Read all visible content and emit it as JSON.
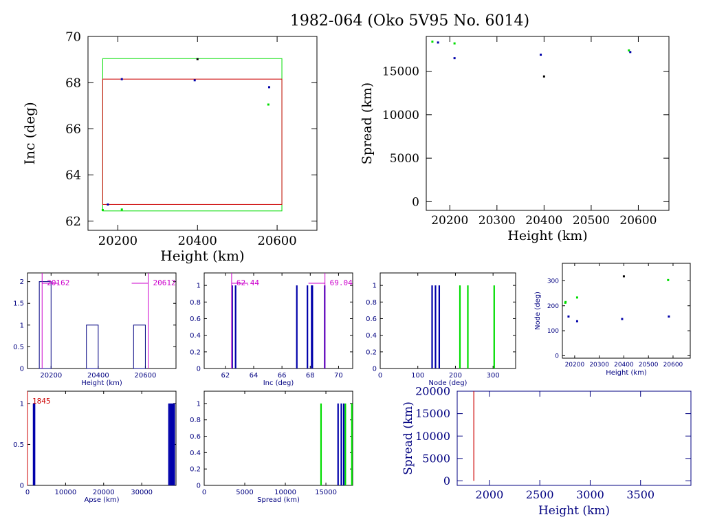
{
  "title": "1982-064 (Oko 5V95 No. 6014)",
  "colors": {
    "axis": "#000000",
    "blue": "#0000aa",
    "navy": "#000080",
    "green": "#00dd00",
    "red": "#cc0000",
    "magenta": "#cc00cc",
    "black": "#000000"
  },
  "chart_data": [
    {
      "id": "inc_height",
      "type": "scatter",
      "xlabel": "Height (km)",
      "ylabel": "Inc (deg)",
      "xlim": [
        20125,
        20700
      ],
      "ylim": [
        61.6,
        70
      ],
      "xticks": [
        20200,
        20400,
        20600
      ],
      "yticks": [
        62,
        64,
        66,
        68,
        70
      ],
      "boxes": [
        {
          "name": "",
          "color": "#00dd00",
          "x": [
            20162,
            20612
          ],
          "y": [
            62.44,
            69.04
          ]
        },
        {
          "name": "",
          "color": "#cc0000",
          "x": [
            20162,
            20612
          ],
          "y": [
            62.72,
            68.15
          ]
        }
      ],
      "points": [
        {
          "x": 20162,
          "y": 62.48,
          "color": "#00dd00"
        },
        {
          "x": 20175,
          "y": 62.72,
          "color": "#0000aa"
        },
        {
          "x": 20210,
          "y": 62.5,
          "color": "#00dd00"
        },
        {
          "x": 20210,
          "y": 68.15,
          "color": "#0000aa"
        },
        {
          "x": 20393,
          "y": 68.1,
          "color": "#0000aa"
        },
        {
          "x": 20400,
          "y": 69.02,
          "color": "#000000"
        },
        {
          "x": 20580,
          "y": 67.8,
          "color": "#0000aa"
        },
        {
          "x": 20578,
          "y": 67.05,
          "color": "#00dd00"
        }
      ]
    },
    {
      "id": "spread_height",
      "type": "scatter",
      "xlabel": "Height (km)",
      "ylabel": "Spread (km)",
      "xlim": [
        20150,
        20665
      ],
      "ylim": [
        -1000,
        19000
      ],
      "xticks": [
        20200,
        20300,
        20400,
        20500,
        20600
      ],
      "yticks": [
        0,
        5000,
        10000,
        15000
      ],
      "points": [
        {
          "x": 20163,
          "y": 18400,
          "color": "#00dd00"
        },
        {
          "x": 20175,
          "y": 18300,
          "color": "#0000aa"
        },
        {
          "x": 20210,
          "y": 18200,
          "color": "#00dd00"
        },
        {
          "x": 20210,
          "y": 16500,
          "color": "#0000aa"
        },
        {
          "x": 20393,
          "y": 16900,
          "color": "#0000aa"
        },
        {
          "x": 20400,
          "y": 14400,
          "color": "#000000"
        },
        {
          "x": 20580,
          "y": 17400,
          "color": "#00dd00"
        },
        {
          "x": 20583,
          "y": 17200,
          "color": "#0000aa"
        }
      ]
    },
    {
      "id": "hist_height",
      "type": "bar",
      "xlabel": "Height (km)",
      "ylabel": "",
      "xlim": [
        20100,
        20730
      ],
      "ylim": [
        0,
        2.2
      ],
      "xticks": [
        20200,
        20400,
        20600
      ],
      "yticks": [
        0,
        0.5,
        1,
        1.5,
        2
      ],
      "ytick_labels": [
        "0",
        "0.5",
        "1",
        "1.5",
        "2"
      ],
      "bins": [
        {
          "x0": 20150,
          "x1": 20200,
          "count": 2
        },
        {
          "x0": 20350,
          "x1": 20400,
          "count": 1
        },
        {
          "x0": 20550,
          "x1": 20600,
          "count": 1
        }
      ],
      "markers": [
        {
          "x": 20162,
          "label": "20162"
        },
        {
          "x": 20612,
          "label": "20612"
        }
      ]
    },
    {
      "id": "hist_inc",
      "type": "bar",
      "xlabel": "Inc (deg)",
      "ylabel": "",
      "xlim": [
        60.5,
        71
      ],
      "ylim": [
        0,
        1.15
      ],
      "xticks": [
        62,
        64,
        66,
        68,
        70
      ],
      "yticks": [
        0,
        0.2,
        0.4,
        0.6,
        0.8,
        1
      ],
      "ytick_labels": [
        "0",
        "0.2",
        "0.4",
        "0.6",
        "0.8",
        "1"
      ],
      "lines": [
        {
          "x": 62.48,
          "h": 1,
          "color": "#0000aa"
        },
        {
          "x": 62.72,
          "h": 1,
          "color": "#0000aa"
        },
        {
          "x": 67.05,
          "h": 1,
          "color": "#0000aa"
        },
        {
          "x": 67.8,
          "h": 1,
          "color": "#0000aa"
        },
        {
          "x": 68.1,
          "h": 1,
          "color": "#0000aa"
        },
        {
          "x": 68.15,
          "h": 1,
          "color": "#0000aa"
        },
        {
          "x": 69.02,
          "h": 1,
          "color": "#0000aa"
        }
      ],
      "markers": [
        {
          "x": 62.44,
          "label": "62.44"
        },
        {
          "x": 69.04,
          "label": "69.04"
        }
      ]
    },
    {
      "id": "hist_node",
      "type": "bar",
      "xlabel": "Node (deg)",
      "ylabel": "",
      "xlim": [
        0,
        360
      ],
      "ylim": [
        0,
        1.15
      ],
      "xticks": [
        0,
        100,
        200,
        300
      ],
      "yticks": [
        0,
        0.2,
        0.4,
        0.6,
        0.8,
        1
      ],
      "ytick_labels": [
        "0",
        "0.2",
        "0.4",
        "0.6",
        "0.8",
        "1"
      ],
      "lines": [
        {
          "x": 138,
          "h": 1,
          "color": "#0000aa"
        },
        {
          "x": 147,
          "h": 1,
          "color": "#0000aa"
        },
        {
          "x": 157,
          "h": 1,
          "color": "#0000aa"
        },
        {
          "x": 212,
          "h": 1,
          "color": "#00dd00"
        },
        {
          "x": 233,
          "h": 1,
          "color": "#00dd00"
        },
        {
          "x": 303,
          "h": 1,
          "color": "#00dd00"
        }
      ]
    },
    {
      "id": "node_height",
      "type": "scatter",
      "xlabel": "Height (km)",
      "ylabel": "Node (deg)",
      "xlim": [
        20150,
        20670
      ],
      "ylim": [
        -10,
        370
      ],
      "xticks": [
        20200,
        20300,
        20400,
        20500,
        20600
      ],
      "xtick_labels": [
        "20200",
        "20300",
        "20400",
        "20500",
        "20600"
      ],
      "yticks": [
        0,
        100,
        200,
        300
      ],
      "points": [
        {
          "x": 20162,
          "y": 212,
          "color": "#00dd00"
        },
        {
          "x": 20163,
          "y": 215,
          "color": "#00dd00"
        },
        {
          "x": 20175,
          "y": 157,
          "color": "#0000aa"
        },
        {
          "x": 20210,
          "y": 233,
          "color": "#00dd00"
        },
        {
          "x": 20210,
          "y": 138,
          "color": "#0000aa"
        },
        {
          "x": 20393,
          "y": 147,
          "color": "#0000aa"
        },
        {
          "x": 20400,
          "y": 318,
          "color": "#000000"
        },
        {
          "x": 20580,
          "y": 303,
          "color": "#00dd00"
        },
        {
          "x": 20583,
          "y": 157,
          "color": "#0000aa"
        }
      ]
    },
    {
      "id": "hist_apse",
      "type": "bar",
      "xlabel": "Apse (km)",
      "ylabel": "",
      "xlim": [
        0,
        39000
      ],
      "ylim": [
        0,
        1.15
      ],
      "xticks": [
        0,
        10000,
        20000,
        30000
      ],
      "yticks": [
        0,
        0.5,
        1
      ],
      "ytick_labels": [
        "0",
        "0.5",
        "1"
      ],
      "lines": [
        {
          "x": 1600,
          "h": 1,
          "color": "#0000aa"
        },
        {
          "x": 1850,
          "h": 1,
          "color": "#0000aa"
        },
        {
          "x": 37150,
          "h": 1,
          "color": "#0000aa"
        },
        {
          "x": 37500,
          "h": 1,
          "color": "#0000aa"
        },
        {
          "x": 37850,
          "h": 1,
          "color": "#0000aa"
        },
        {
          "x": 38200,
          "h": 1,
          "color": "#0000aa"
        },
        {
          "x": 38550,
          "h": 1,
          "color": "#0000aa"
        }
      ],
      "markers": [
        {
          "x": 0,
          "label": "1845",
          "color": "#cc0000"
        }
      ]
    },
    {
      "id": "hist_spread",
      "type": "bar",
      "xlabel": "Spread (km)",
      "ylabel": "",
      "xlim": [
        0,
        18300
      ],
      "ylim": [
        0,
        1.15
      ],
      "xticks": [
        0,
        5000,
        10000,
        15000
      ],
      "yticks": [
        0,
        0.2,
        0.4,
        0.6,
        0.8,
        1
      ],
      "ytick_labels": [
        "0",
        "0.2",
        "0.4",
        "0.6",
        "0.8",
        "1"
      ],
      "lines": [
        {
          "x": 14400,
          "h": 1,
          "color": "#00dd00"
        },
        {
          "x": 16500,
          "h": 1,
          "color": "#0000aa"
        },
        {
          "x": 16900,
          "h": 1,
          "color": "#0000aa"
        },
        {
          "x": 17200,
          "h": 1,
          "color": "#0000aa"
        },
        {
          "x": 17400,
          "h": 1,
          "color": "#00dd00"
        },
        {
          "x": 18200,
          "h": 1,
          "color": "#00dd00"
        }
      ]
    },
    {
      "id": "spread_height_low",
      "type": "scatter",
      "xlabel": "Height (km)",
      "ylabel": "Spread (km)",
      "xlim": [
        1680,
        4000
      ],
      "ylim": [
        -1000,
        20000
      ],
      "xticks": [
        2000,
        2500,
        3000,
        3500
      ],
      "yticks": [
        0,
        5000,
        10000,
        15000,
        20000
      ],
      "vlines": [
        {
          "x": 1845,
          "y0": 0,
          "y1": 20000,
          "color": "#cc0000"
        }
      ],
      "points": []
    }
  ]
}
